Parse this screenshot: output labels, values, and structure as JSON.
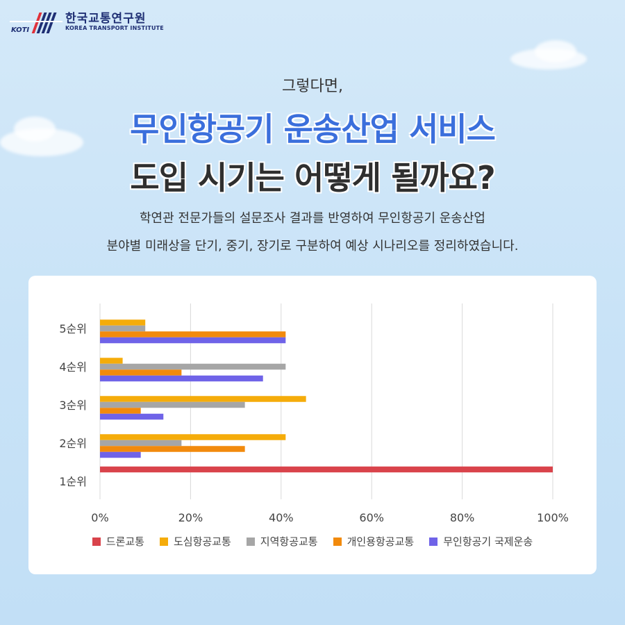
{
  "logo": {
    "korean": "한국교통연구원",
    "english": "KOREA TRANSPORT INSTITUTE",
    "mark": "KOTI"
  },
  "intro": "그렇다면,",
  "headline": {
    "line1": "무인항공기 운송산업 서비스",
    "line2": "도입 시기는 어떻게 될까요?"
  },
  "description": {
    "line1": "학연관 전문가들의 설문조사 결과를 반영하여 무인항공기 운송산업",
    "line2": "분야별 미래상을 단기, 중기, 장기로 구분하여 예상 시나리오를 정리하였습니다."
  },
  "chart_data": {
    "type": "bar",
    "orientation": "horizontal",
    "categories": [
      "5순위",
      "4순위",
      "3순위",
      "2순위",
      "1순위"
    ],
    "x_ticks": [
      "0%",
      "20%",
      "40%",
      "60%",
      "80%",
      "100%"
    ],
    "xlim": [
      0,
      100
    ],
    "grid": true,
    "legend_position": "bottom",
    "series": [
      {
        "name": "드론교통",
        "color": "#d9434b",
        "values": [
          0,
          0,
          0,
          0,
          100
        ]
      },
      {
        "name": "도심항공교통",
        "color": "#f5ac0a",
        "values": [
          10,
          5,
          45.5,
          41,
          0
        ]
      },
      {
        "name": "지역항공교통",
        "color": "#a6a6a6",
        "values": [
          10,
          41,
          32,
          18,
          0
        ]
      },
      {
        "name": "개인용항공교통",
        "color": "#f28a0c",
        "values": [
          41,
          18,
          9,
          32,
          0
        ]
      },
      {
        "name": "무인항공기 국제운송",
        "color": "#6f63e8",
        "values": [
          41,
          36,
          14,
          9,
          0
        ]
      }
    ]
  }
}
